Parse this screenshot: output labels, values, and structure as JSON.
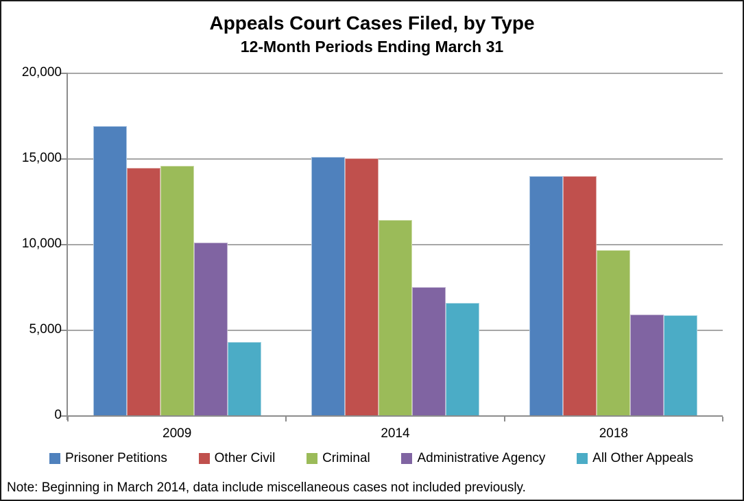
{
  "chart_data": {
    "type": "bar",
    "title": "Appeals Court Cases Filed, by Type",
    "subtitle": "12-Month Periods Ending March 31",
    "categories": [
      "2009",
      "2014",
      "2018"
    ],
    "series": [
      {
        "name": "Prisoner Petitions",
        "color": "#4F81BD",
        "border_color": "#A9C4E2",
        "values": [
          16900,
          15100,
          13950
        ]
      },
      {
        "name": "Other Civil",
        "color": "#C0504D",
        "border_color": "#DCA6A4",
        "values": [
          14450,
          15000,
          13950
        ]
      },
      {
        "name": "Criminal",
        "color": "#9BBB59",
        "border_color": "#CCDCA8",
        "values": [
          14550,
          11400,
          9650
        ]
      },
      {
        "name": "Administrative Agency",
        "color": "#8064A2",
        "border_color": "#BCADCE",
        "values": [
          10100,
          7500,
          5900
        ]
      },
      {
        "name": "All Other Appeals",
        "color": "#4BACC6",
        "border_color": "#A7D5E2",
        "values": [
          4300,
          6550,
          5850
        ]
      }
    ],
    "ylim": [
      0,
      20000
    ],
    "yticks": [
      {
        "value": 20000,
        "label": "20,000"
      },
      {
        "value": 15000,
        "label": "15,000"
      },
      {
        "value": 10000,
        "label": "10,000"
      },
      {
        "value": 5000,
        "label": "5,000"
      },
      {
        "value": 0,
        "label": "0"
      }
    ],
    "grid": true,
    "legend_position": "bottom",
    "grid_color": "#A6A6A6",
    "axis_color": "#8C8C8C",
    "text_color": "#000000"
  },
  "note": "Note: Beginning in March 2014, data include miscellaneous cases not included previously."
}
